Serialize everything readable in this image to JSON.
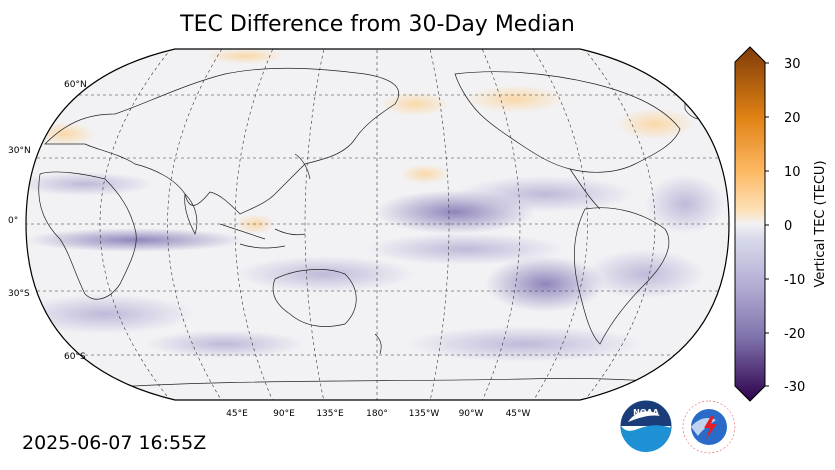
{
  "title": "TEC Difference from 30-Day Median",
  "timestamp": "2025-06-07 16:55Z",
  "colorbar": {
    "label": "Vertical TEC (TECU)",
    "ticks": [
      "30",
      "20",
      "10",
      "0",
      "-10",
      "-20",
      "-30"
    ],
    "range": [
      -30,
      30
    ]
  },
  "lat_labels": [
    "60°N",
    "30°N",
    "0°",
    "30°S",
    "60°S"
  ],
  "lon_labels": [
    "45°E",
    "90°E",
    "135°E",
    "180°",
    "135°W",
    "90°W",
    "45°W"
  ],
  "logos": {
    "noaa": "NOAA",
    "nws": "NATIONAL WEATHER SERVICE"
  },
  "colors": {
    "positive_max": "#7f3b08",
    "positive_mid": "#f1a340",
    "neutral": "#f2f2f4",
    "negative_mid": "#998ec3",
    "negative_max": "#2d004b"
  }
}
